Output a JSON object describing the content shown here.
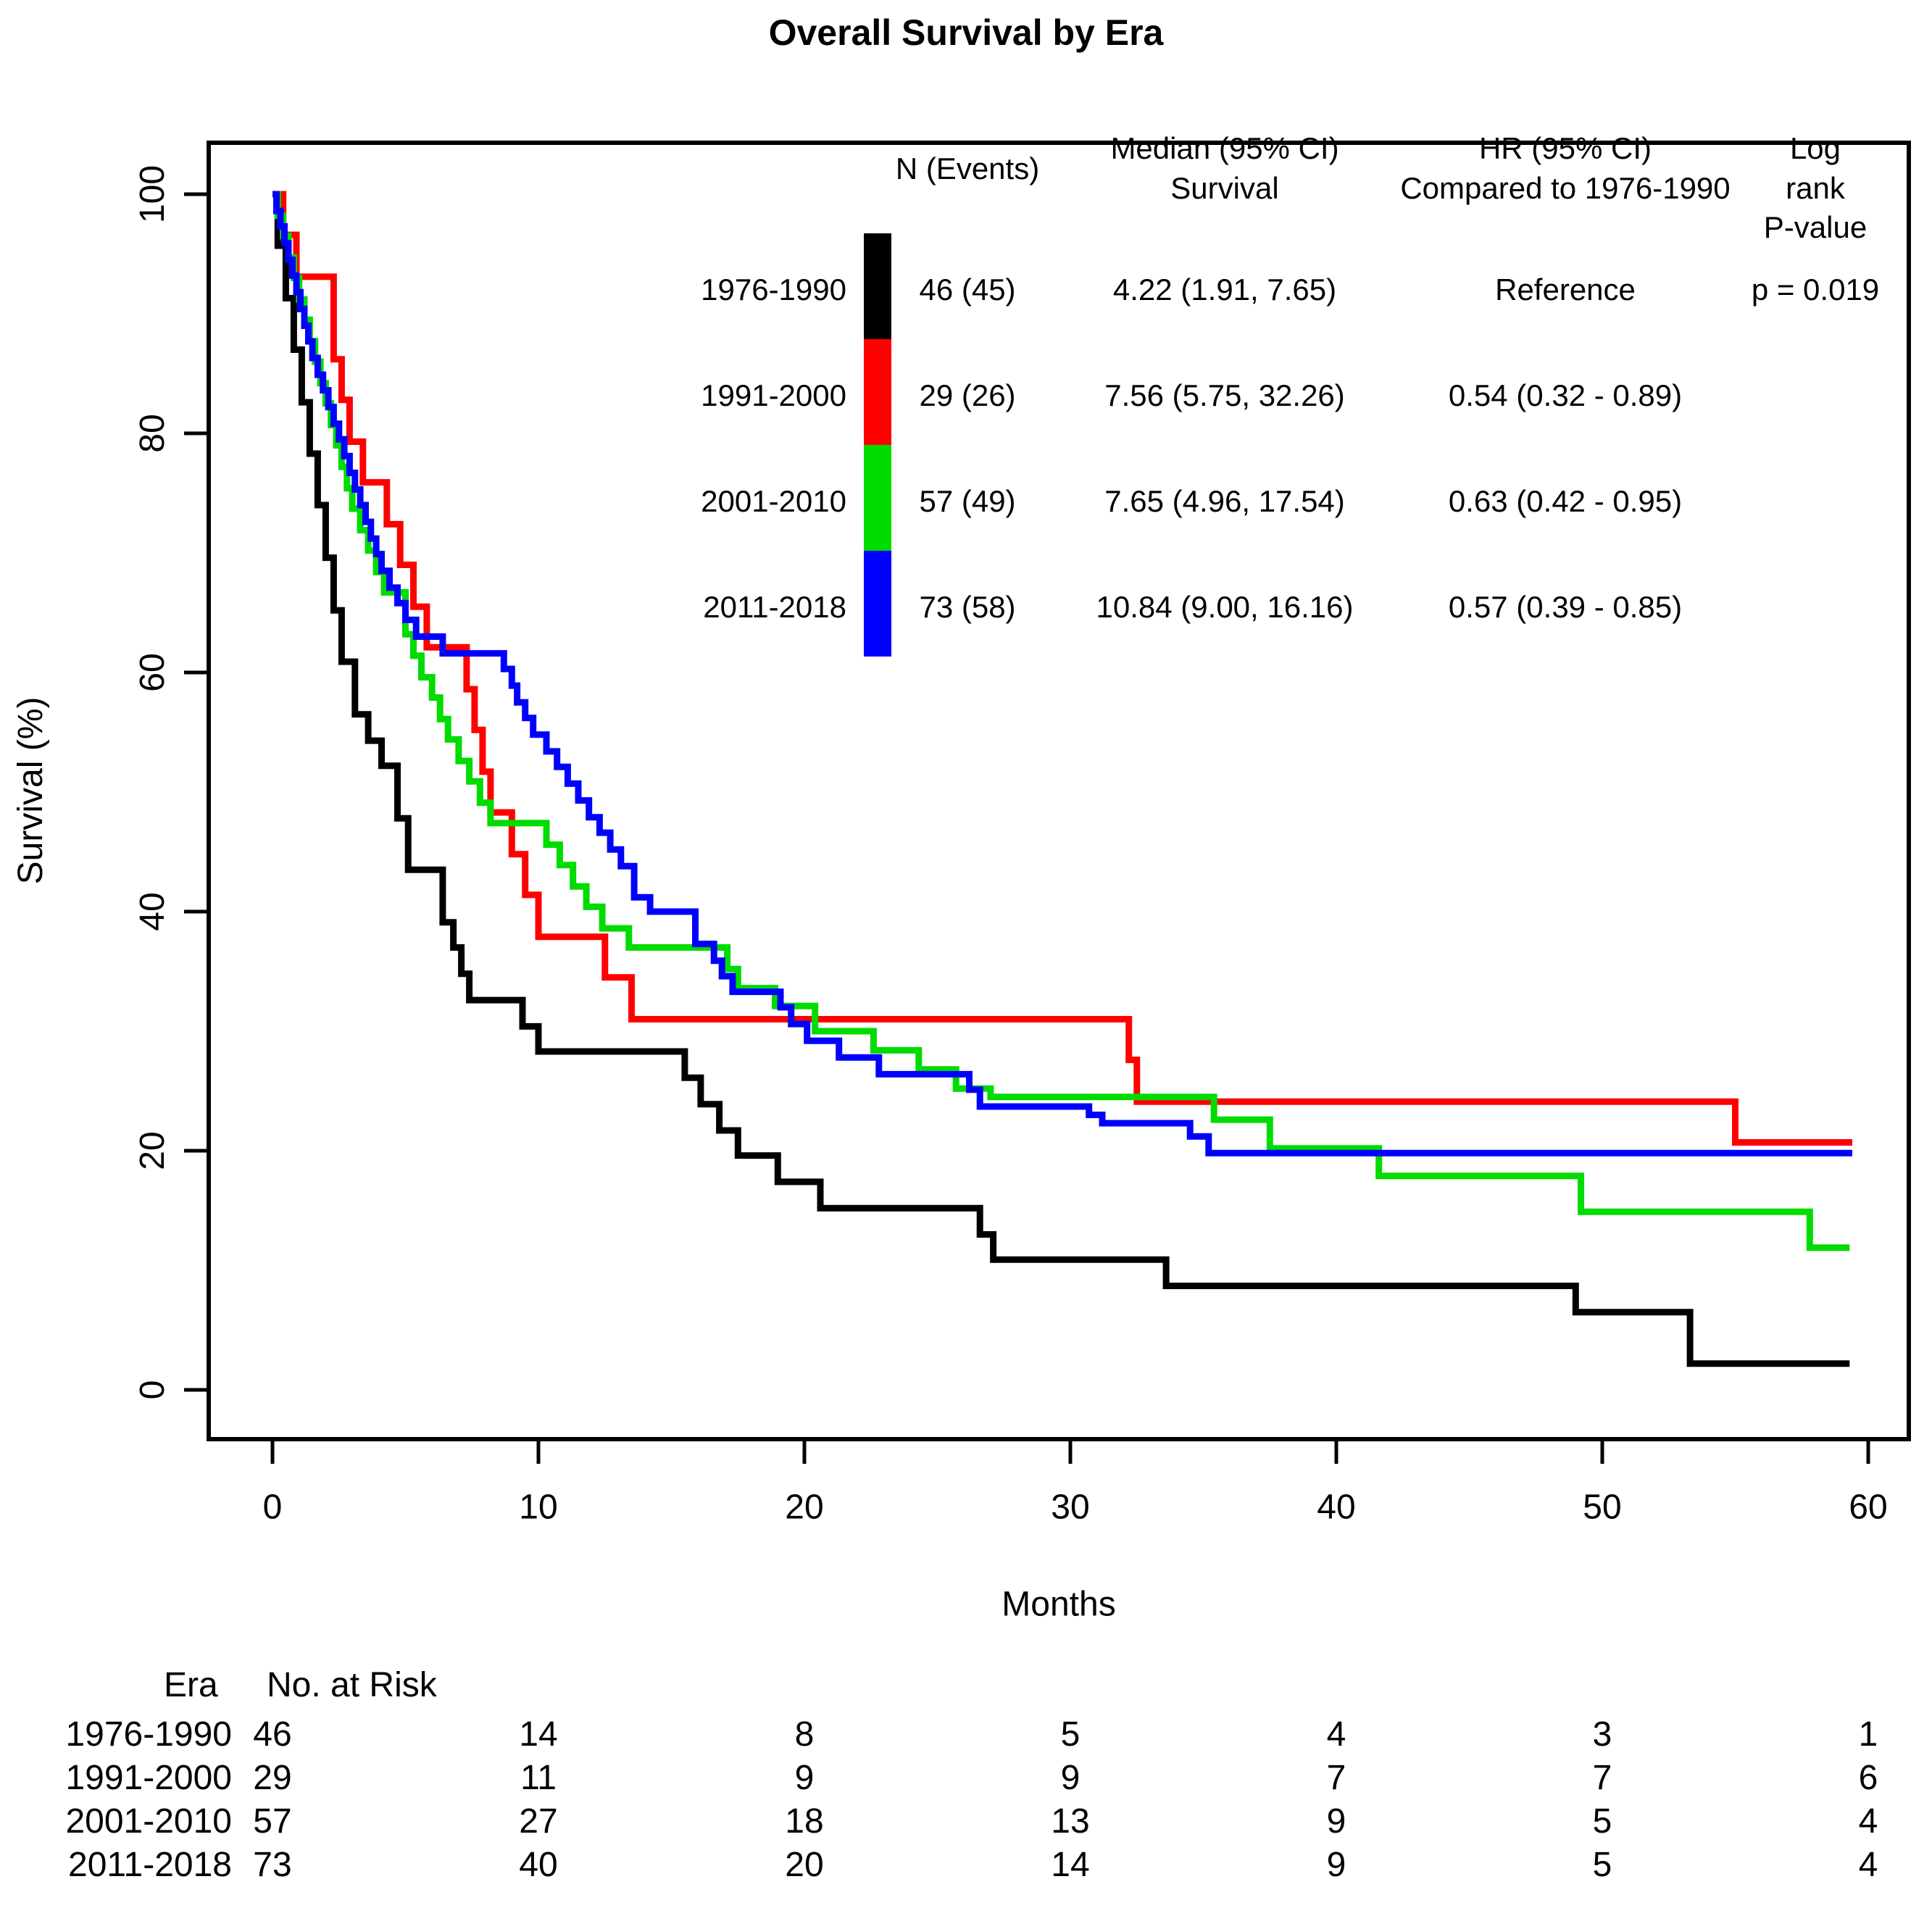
{
  "title": "Overall Survival by Era",
  "axes": {
    "x_label": "Months",
    "y_label": "Survival (%)"
  },
  "legend": {
    "n_header": "N (Events)",
    "median_header": "Median (95% CI)\nSurvival",
    "hr_header": "HR (95% CI)\nCompared to 1976-1990",
    "logrank_header": "Log rank\nP-value",
    "rows": [
      {
        "era": "1976-1990",
        "color": "#000000",
        "n_events": "46 (45)",
        "median": "4.22 (1.91, 7.65)",
        "hr": "Reference",
        "logrank": "p = 0.019"
      },
      {
        "era": "1991-2000",
        "color": "#FF0000",
        "n_events": "29 (26)",
        "median": "7.56 (5.75, 32.26)",
        "hr": "0.54 (0.32 - 0.89)",
        "logrank": ""
      },
      {
        "era": "2001-2010",
        "color": "#00DB00",
        "n_events": "57 (49)",
        "median": "7.65 (4.96, 17.54)",
        "hr": "0.63 (0.42 - 0.95)",
        "logrank": ""
      },
      {
        "era": "2011-2018",
        "color": "#0000FF",
        "n_events": "73 (58)",
        "median": "10.84 (9.00, 16.16)",
        "hr": "0.57 (0.39 - 0.85)",
        "logrank": ""
      }
    ]
  },
  "risk_table": {
    "era_header": "Era",
    "risk_header": "No. at Risk",
    "months": [
      0,
      10,
      20,
      30,
      40,
      50,
      60
    ],
    "rows": [
      {
        "era": "1976-1990",
        "counts": [
          46,
          14,
          8,
          5,
          4,
          3,
          1
        ]
      },
      {
        "era": "1991-2000",
        "counts": [
          29,
          11,
          9,
          9,
          7,
          7,
          6
        ]
      },
      {
        "era": "2001-2010",
        "counts": [
          57,
          27,
          18,
          13,
          9,
          5,
          4
        ]
      },
      {
        "era": "2011-2018",
        "counts": [
          73,
          40,
          20,
          14,
          9,
          5,
          4
        ]
      }
    ]
  },
  "chart_data": {
    "type": "line",
    "subtype": "kaplan-meier-step",
    "title": "Overall Survival by Era",
    "xlabel": "Months",
    "ylabel": "Survival (%)",
    "xlim": [
      0,
      60
    ],
    "ylim": [
      0,
      100
    ],
    "x_ticks": [
      0,
      10,
      20,
      30,
      40,
      50,
      60
    ],
    "y_ticks": [
      0,
      20,
      40,
      60,
      80,
      100
    ],
    "grid": false,
    "legend_position": "top-right-inside",
    "series": [
      {
        "name": "1976-1990",
        "color": "#000000",
        "end": 59.3,
        "points": [
          [
            0,
            100
          ],
          [
            0.2,
            95.7
          ],
          [
            0.5,
            91.3
          ],
          [
            0.8,
            87
          ],
          [
            1.1,
            82.6
          ],
          [
            1.4,
            78.3
          ],
          [
            1.7,
            74
          ],
          [
            2,
            69.6
          ],
          [
            2.3,
            65.2
          ],
          [
            2.6,
            60.9
          ],
          [
            3.1,
            56.5
          ],
          [
            3.6,
            54.3
          ],
          [
            4.1,
            52.2
          ],
          [
            4.7,
            47.8
          ],
          [
            5.1,
            43.5
          ],
          [
            6.4,
            39.1
          ],
          [
            6.8,
            37
          ],
          [
            7.1,
            34.8
          ],
          [
            7.4,
            32.6
          ],
          [
            9.4,
            30.4
          ],
          [
            10,
            28.3
          ],
          [
            15.5,
            26.1
          ],
          [
            16.1,
            23.9
          ],
          [
            16.8,
            21.7
          ],
          [
            17.5,
            19.6
          ],
          [
            19,
            17.4
          ],
          [
            20.6,
            15.2
          ],
          [
            26.6,
            13
          ],
          [
            27.1,
            10.9
          ],
          [
            33.6,
            8.7
          ],
          [
            49,
            6.5
          ],
          [
            53.3,
            2.2
          ]
        ]
      },
      {
        "name": "1991-2000",
        "color": "#FF0000",
        "end": 59.4,
        "points": [
          [
            0,
            100
          ],
          [
            0.4,
            96.6
          ],
          [
            0.9,
            93.1
          ],
          [
            2.3,
            86.2
          ],
          [
            2.6,
            82.8
          ],
          [
            2.9,
            79.3
          ],
          [
            3.4,
            75.9
          ],
          [
            4.3,
            72.4
          ],
          [
            4.8,
            69
          ],
          [
            5.3,
            65.5
          ],
          [
            5.8,
            62.1
          ],
          [
            7.3,
            58.6
          ],
          [
            7.6,
            55.2
          ],
          [
            7.9,
            51.7
          ],
          [
            8.2,
            48.3
          ],
          [
            9,
            44.8
          ],
          [
            9.5,
            41.4
          ],
          [
            10,
            37.9
          ],
          [
            12.5,
            34.5
          ],
          [
            13.5,
            31
          ],
          [
            32.2,
            27.6
          ],
          [
            32.5,
            24.1
          ],
          [
            55,
            20.7
          ]
        ]
      },
      {
        "name": "2001-2010",
        "color": "#00DB00",
        "end": 59.3,
        "points": [
          [
            0,
            100
          ],
          [
            0.2,
            98.2
          ],
          [
            0.4,
            96.5
          ],
          [
            0.6,
            94.7
          ],
          [
            0.8,
            93
          ],
          [
            1,
            91.2
          ],
          [
            1.2,
            89.5
          ],
          [
            1.4,
            87.7
          ],
          [
            1.6,
            86
          ],
          [
            1.8,
            84.2
          ],
          [
            2,
            82.5
          ],
          [
            2.2,
            80.7
          ],
          [
            2.4,
            79
          ],
          [
            2.6,
            77.2
          ],
          [
            2.8,
            75.4
          ],
          [
            3,
            73.7
          ],
          [
            3.3,
            71.9
          ],
          [
            3.6,
            70.2
          ],
          [
            3.9,
            68.4
          ],
          [
            4.2,
            66.7
          ],
          [
            5,
            63.2
          ],
          [
            5.3,
            61.4
          ],
          [
            5.6,
            59.6
          ],
          [
            6,
            57.9
          ],
          [
            6.3,
            56.1
          ],
          [
            6.6,
            54.4
          ],
          [
            7,
            52.6
          ],
          [
            7.4,
            50.9
          ],
          [
            7.8,
            49.1
          ],
          [
            8.2,
            47.4
          ],
          [
            10.3,
            45.6
          ],
          [
            10.8,
            43.9
          ],
          [
            11.3,
            42.1
          ],
          [
            11.8,
            40.4
          ],
          [
            12.4,
            38.6
          ],
          [
            13.4,
            37
          ],
          [
            17.1,
            35.2
          ],
          [
            17.5,
            33.6
          ],
          [
            18.9,
            32.1
          ],
          [
            20.4,
            30
          ],
          [
            22.6,
            28.4
          ],
          [
            24.3,
            26.8
          ],
          [
            25.7,
            25.2
          ],
          [
            27,
            24.5
          ],
          [
            35.4,
            22.6
          ],
          [
            37.5,
            20.2
          ],
          [
            41.6,
            17.9
          ],
          [
            49.2,
            14.9
          ],
          [
            57.8,
            11.9
          ]
        ]
      },
      {
        "name": "2011-2018",
        "color": "#0000FF",
        "end": 59.4,
        "points": [
          [
            0,
            100
          ],
          [
            0.15,
            98.6
          ],
          [
            0.3,
            97.3
          ],
          [
            0.45,
            95.9
          ],
          [
            0.6,
            94.5
          ],
          [
            0.75,
            93.2
          ],
          [
            0.9,
            91.8
          ],
          [
            1.05,
            90.4
          ],
          [
            1.2,
            89
          ],
          [
            1.35,
            87.7
          ],
          [
            1.5,
            86.3
          ],
          [
            1.7,
            84.9
          ],
          [
            1.9,
            83.6
          ],
          [
            2.1,
            82.2
          ],
          [
            2.3,
            80.8
          ],
          [
            2.5,
            79.5
          ],
          [
            2.7,
            78.1
          ],
          [
            2.9,
            76.7
          ],
          [
            3.1,
            75.3
          ],
          [
            3.3,
            74
          ],
          [
            3.5,
            72.6
          ],
          [
            3.7,
            71.2
          ],
          [
            3.9,
            69.9
          ],
          [
            4.1,
            68.5
          ],
          [
            4.4,
            67.1
          ],
          [
            4.7,
            65.8
          ],
          [
            5,
            64.4
          ],
          [
            5.4,
            63
          ],
          [
            6.4,
            61.6
          ],
          [
            8.7,
            60.3
          ],
          [
            9,
            58.9
          ],
          [
            9.2,
            57.5
          ],
          [
            9.5,
            56.2
          ],
          [
            9.8,
            54.8
          ],
          [
            10.3,
            53.4
          ],
          [
            10.7,
            52.1
          ],
          [
            11.1,
            50.7
          ],
          [
            11.5,
            49.3
          ],
          [
            11.9,
            47.9
          ],
          [
            12.3,
            46.6
          ],
          [
            12.7,
            45.2
          ],
          [
            13.1,
            43.8
          ],
          [
            13.6,
            41.2
          ],
          [
            14.2,
            40
          ],
          [
            15.9,
            37.3
          ],
          [
            16.6,
            35.9
          ],
          [
            16.9,
            34.6
          ],
          [
            17.3,
            33.3
          ],
          [
            19.1,
            32
          ],
          [
            19.5,
            30.6
          ],
          [
            20.1,
            29.2
          ],
          [
            21.3,
            27.8
          ],
          [
            22.8,
            26.4
          ],
          [
            26.2,
            25.1
          ],
          [
            26.6,
            23.7
          ],
          [
            30.7,
            23
          ],
          [
            31.2,
            22.3
          ],
          [
            34.5,
            21.2
          ],
          [
            35.2,
            19.8
          ]
        ]
      }
    ]
  }
}
